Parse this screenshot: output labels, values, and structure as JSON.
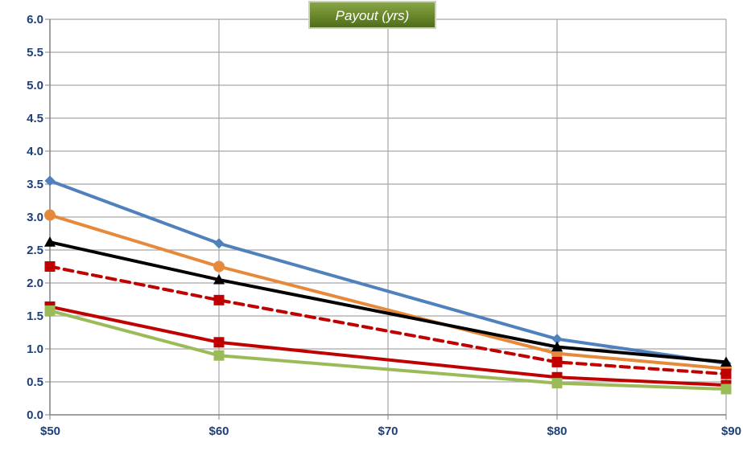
{
  "chart_data": {
    "type": "line",
    "title": "Payout (yrs)",
    "xlabel": "",
    "ylabel": "",
    "x": [
      50,
      60,
      80,
      90
    ],
    "xlim": [
      50,
      90
    ],
    "xticks": [
      50,
      60,
      70,
      80,
      90
    ],
    "xtick_labels": [
      "$50",
      "$60",
      "$70",
      "$80",
      "$90"
    ],
    "ylim": [
      0,
      6
    ],
    "yticks": [
      0,
      0.5,
      1,
      1.5,
      2,
      2.5,
      3,
      3.5,
      4,
      4.5,
      5,
      5.5,
      6
    ],
    "ytick_labels": [
      "0.0",
      "0.5",
      "1.0",
      "1.5",
      "2.0",
      "2.5",
      "3.0",
      "3.5",
      "4.0",
      "4.5",
      "5.0",
      "5.5",
      "6.0"
    ],
    "grid": true,
    "legend": "none",
    "series": [
      {
        "values": [
          3.55,
          2.6,
          1.15,
          0.78
        ],
        "color": "#4f81bd",
        "marker": "diamond",
        "dash": "solid"
      },
      {
        "values": [
          3.03,
          2.25,
          0.93,
          0.7
        ],
        "color": "#e6893a",
        "marker": "circle",
        "dash": "solid"
      },
      {
        "values": [
          2.62,
          2.05,
          1.03,
          0.8
        ],
        "color": "#000000",
        "marker": "triangle",
        "dash": "solid"
      },
      {
        "values": [
          2.25,
          1.74,
          0.8,
          0.62
        ],
        "color": "#c00000",
        "marker": "square",
        "dash": "dashed"
      },
      {
        "values": [
          1.64,
          1.1,
          0.57,
          0.45
        ],
        "color": "#c00000",
        "marker": "square",
        "dash": "solid"
      },
      {
        "values": [
          1.58,
          0.9,
          0.48,
          0.39
        ],
        "color": "#9bbb59",
        "marker": "square",
        "dash": "solid"
      }
    ]
  }
}
